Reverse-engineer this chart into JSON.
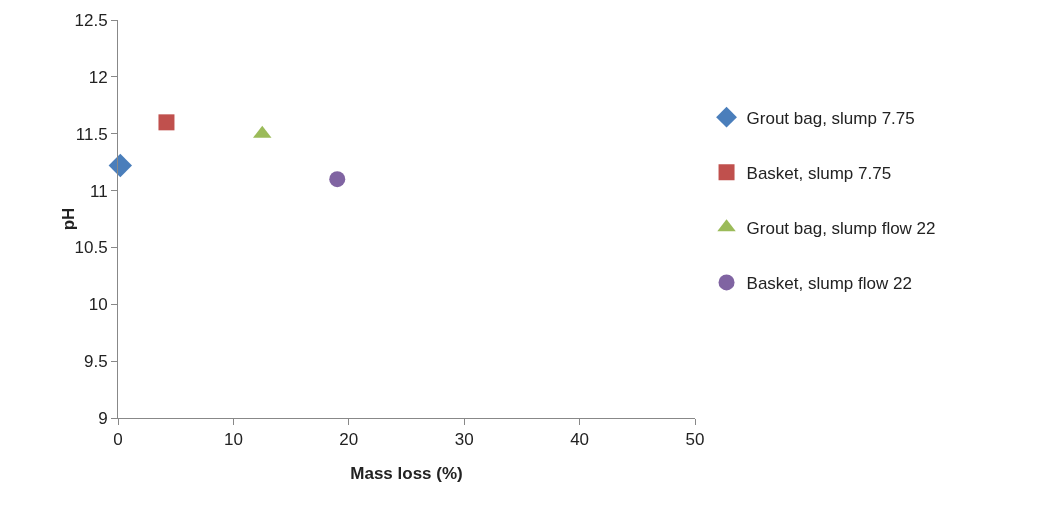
{
  "chart_data": {
    "type": "scatter",
    "xlabel": "Mass loss (%)",
    "ylabel": "pH",
    "series": [
      {
        "name": "Grout bag, slump 7.75",
        "color": "#4a7ebb",
        "marker": "diamond",
        "x": [
          0.2
        ],
        "values": [
          11.22
        ]
      },
      {
        "name": "Basket, slump 7.75",
        "color": "#c0504d",
        "marker": "square",
        "x": [
          4.2
        ],
        "values": [
          11.6
        ]
      },
      {
        "name": "Grout bag, slump flow 22",
        "color": "#9bbb59",
        "marker": "triangle",
        "x": [
          12.5
        ],
        "values": [
          11.5
        ]
      },
      {
        "name": "Basket, slump flow 22",
        "color": "#8064a2",
        "marker": "circle",
        "x": [
          19
        ],
        "values": [
          11.1
        ]
      }
    ],
    "xlim": [
      0,
      50
    ],
    "xticks": [
      0,
      10,
      20,
      30,
      40,
      50
    ],
    "ylim": [
      9,
      12.5
    ],
    "yticks": [
      9,
      9.5,
      10,
      10.5,
      11,
      11.5,
      12,
      12.5
    ],
    "grid": false,
    "legend": "right"
  }
}
